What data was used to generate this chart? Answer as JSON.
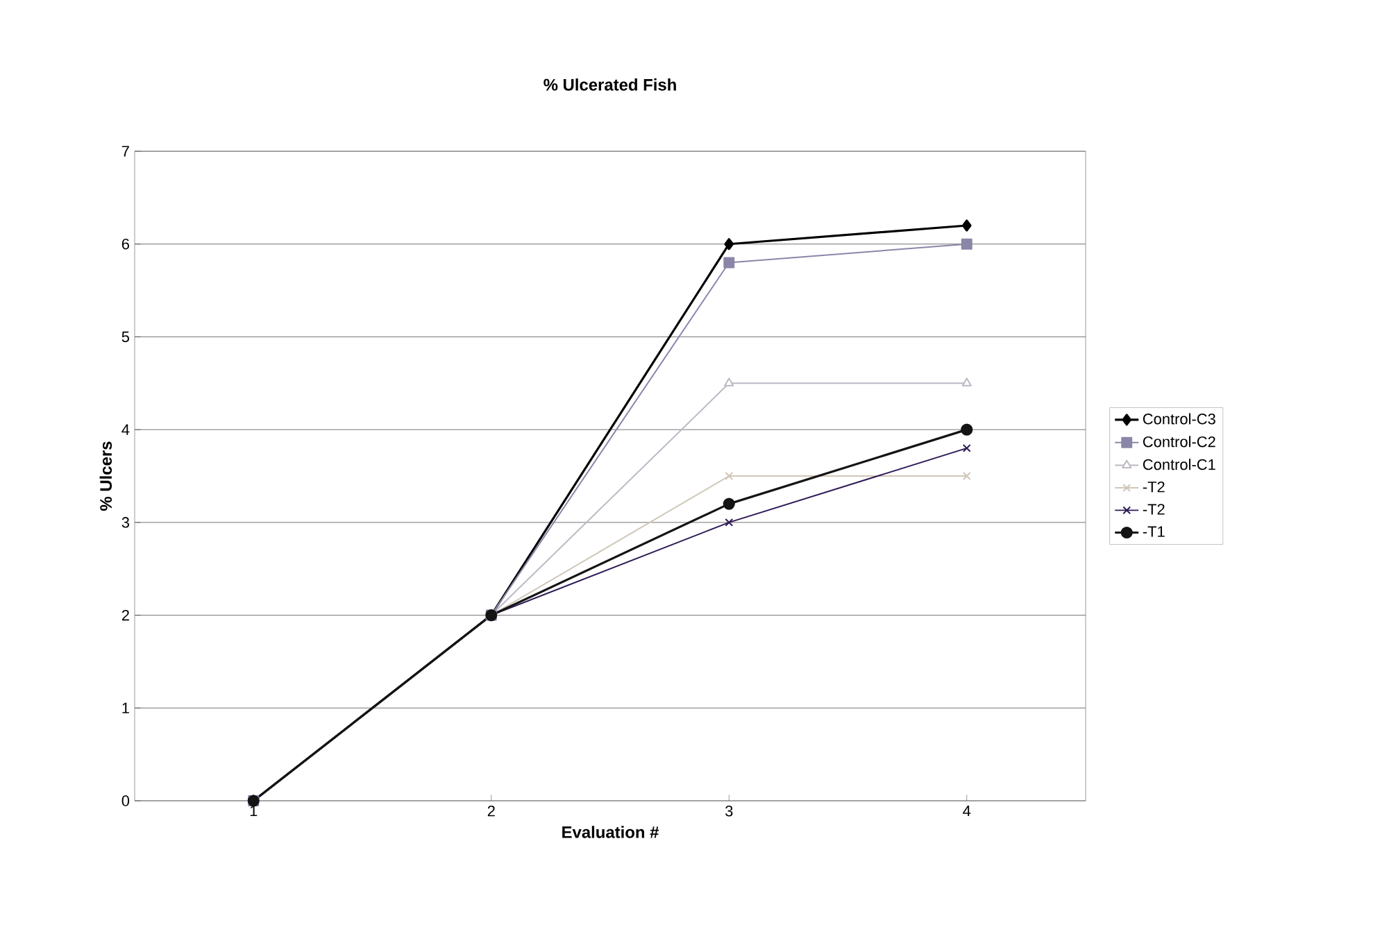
{
  "chart_data": {
    "type": "line",
    "title": "% Ulcerated Fish",
    "xlabel": "Evaluation #",
    "ylabel": "% Ulcers",
    "categories": [
      "1",
      "2",
      "3",
      "4"
    ],
    "ylim": [
      0,
      7
    ],
    "yticks": [
      0,
      1,
      2,
      3,
      4,
      5,
      6,
      7
    ],
    "grid": "y",
    "legend": "right",
    "series": [
      {
        "name": "Control-C3",
        "color": "#000000",
        "marker": "diamond",
        "values": [
          0,
          2,
          6,
          6.2
        ]
      },
      {
        "name": "Control-C2",
        "color": "#8a86a8",
        "marker": "square",
        "values": [
          0,
          2,
          5.8,
          6
        ]
      },
      {
        "name": "Control-C1",
        "color": "#bdb8c4",
        "marker": "triangle",
        "values": [
          0,
          2,
          4.5,
          4.5
        ]
      },
      {
        "name": "-T2",
        "color": "#cfc6b8",
        "marker": "cross",
        "values": [
          0,
          2,
          3.5,
          3.5
        ]
      },
      {
        "name": "-T2",
        "color": "#2e1a55",
        "marker": "cross",
        "values": [
          0,
          2,
          3,
          3.8
        ]
      },
      {
        "name": "-T1",
        "color": "#141414",
        "marker": "circle",
        "values": [
          0,
          2,
          3.2,
          4
        ]
      }
    ]
  }
}
